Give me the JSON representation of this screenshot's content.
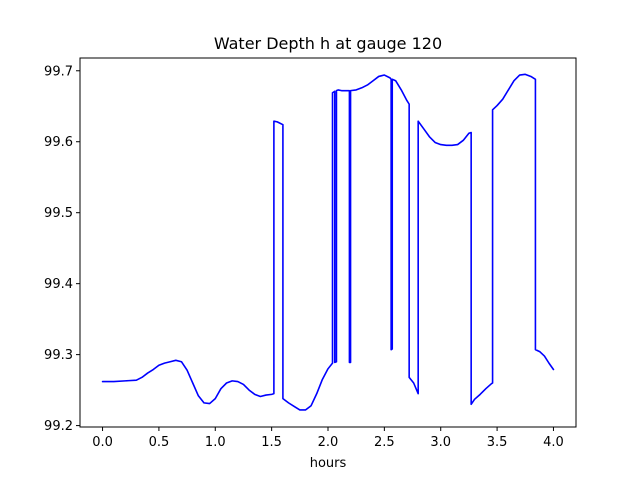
{
  "chart_data": {
    "type": "line",
    "title": "Water Depth h at gauge 120",
    "xlabel": "hours",
    "ylabel": "",
    "xlim": [
      -0.2,
      4.2
    ],
    "ylim": [
      99.198,
      99.718
    ],
    "x_ticks": [
      0.0,
      0.5,
      1.0,
      1.5,
      2.0,
      2.5,
      3.0,
      3.5,
      4.0
    ],
    "x_tick_labels": [
      "0.0",
      "0.5",
      "1.0",
      "1.5",
      "2.0",
      "2.5",
      "3.0",
      "3.5",
      "4.0"
    ],
    "y_ticks": [
      99.2,
      99.3,
      99.4,
      99.5,
      99.6,
      99.7
    ],
    "y_tick_labels": [
      "99.2",
      "99.3",
      "99.4",
      "99.5",
      "99.6",
      "99.7"
    ],
    "grid": false,
    "series": [
      {
        "color": "#0000ff",
        "x": [
          0.0,
          0.1,
          0.2,
          0.3,
          0.35,
          0.4,
          0.45,
          0.5,
          0.55,
          0.6,
          0.65,
          0.7,
          0.75,
          0.8,
          0.85,
          0.9,
          0.95,
          1.0,
          1.05,
          1.1,
          1.15,
          1.2,
          1.25,
          1.3,
          1.35,
          1.4,
          1.45,
          1.5,
          1.52,
          1.52,
          1.55,
          1.6,
          1.6,
          1.65,
          1.7,
          1.75,
          1.8,
          1.85,
          1.9,
          1.95,
          2.0,
          2.04,
          2.04,
          2.06,
          2.06,
          2.075,
          2.075,
          2.09,
          2.09,
          2.12,
          2.16,
          2.19,
          2.19,
          2.2,
          2.2,
          2.25,
          2.3,
          2.35,
          2.4,
          2.45,
          2.5,
          2.55,
          2.56,
          2.56,
          2.57,
          2.57,
          2.6,
          2.65,
          2.7,
          2.72,
          2.72,
          2.76,
          2.8,
          2.8,
          2.85,
          2.9,
          2.95,
          3.0,
          3.05,
          3.1,
          3.15,
          3.2,
          3.25,
          3.27,
          3.27,
          3.3,
          3.35,
          3.4,
          3.45,
          3.46,
          3.46,
          3.5,
          3.55,
          3.6,
          3.65,
          3.7,
          3.75,
          3.8,
          3.84,
          3.84,
          3.88,
          3.92,
          3.96,
          4.0
        ],
        "y": [
          99.262,
          99.262,
          99.263,
          99.264,
          99.268,
          99.274,
          99.279,
          99.285,
          99.288,
          99.29,
          99.292,
          99.29,
          99.278,
          99.26,
          99.242,
          99.232,
          99.231,
          99.238,
          99.252,
          99.26,
          99.263,
          99.262,
          99.258,
          99.25,
          99.244,
          99.241,
          99.243,
          99.244,
          99.245,
          99.629,
          99.628,
          99.624,
          99.238,
          99.232,
          99.227,
          99.222,
          99.222,
          99.228,
          99.245,
          99.265,
          99.28,
          99.288,
          99.669,
          99.671,
          99.289,
          99.29,
          99.672,
          99.673,
          99.673,
          99.672,
          99.672,
          99.672,
          99.289,
          99.289,
          99.672,
          99.673,
          99.676,
          99.68,
          99.686,
          99.692,
          99.694,
          99.69,
          99.688,
          99.307,
          99.308,
          99.688,
          99.686,
          99.673,
          99.658,
          99.653,
          99.268,
          99.26,
          99.245,
          99.629,
          99.618,
          99.607,
          99.599,
          99.596,
          99.595,
          99.595,
          99.596,
          99.602,
          99.612,
          99.613,
          99.23,
          99.237,
          99.244,
          99.252,
          99.259,
          99.26,
          99.645,
          99.651,
          99.66,
          99.673,
          99.686,
          99.694,
          99.695,
          99.692,
          99.688,
          99.307,
          99.304,
          99.298,
          99.288,
          99.279
        ]
      }
    ]
  }
}
